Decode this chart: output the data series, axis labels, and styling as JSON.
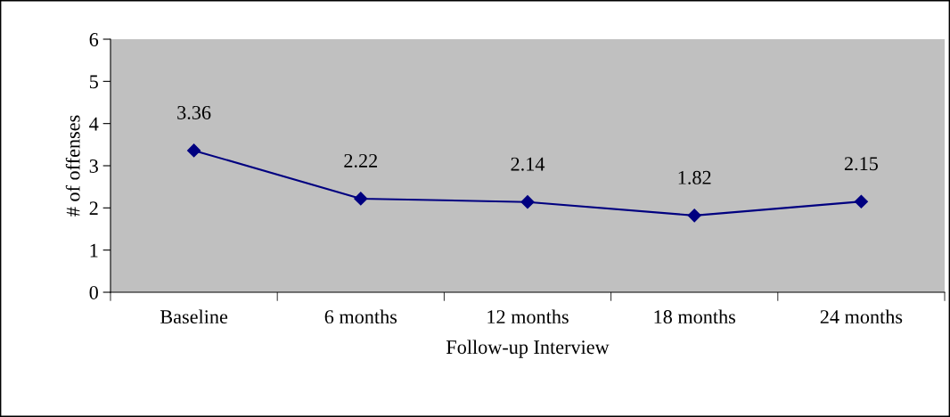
{
  "chart_data": {
    "type": "line",
    "xlabel": "Follow-up Interview",
    "ylabel": "# of offenses",
    "categories": [
      "Baseline",
      "6 months",
      "12 months",
      "18 months",
      "24 months"
    ],
    "series": [
      {
        "color": "#000080",
        "values": [
          3.36,
          2.22,
          2.14,
          1.82,
          2.15
        ]
      }
    ],
    "ylim": [
      0,
      6
    ],
    "yticks": [
      0,
      1,
      2,
      3,
      4,
      5,
      6
    ],
    "grid": false,
    "legend": false,
    "marker": "diamond",
    "line_style": "solid",
    "data_labels": true
  }
}
